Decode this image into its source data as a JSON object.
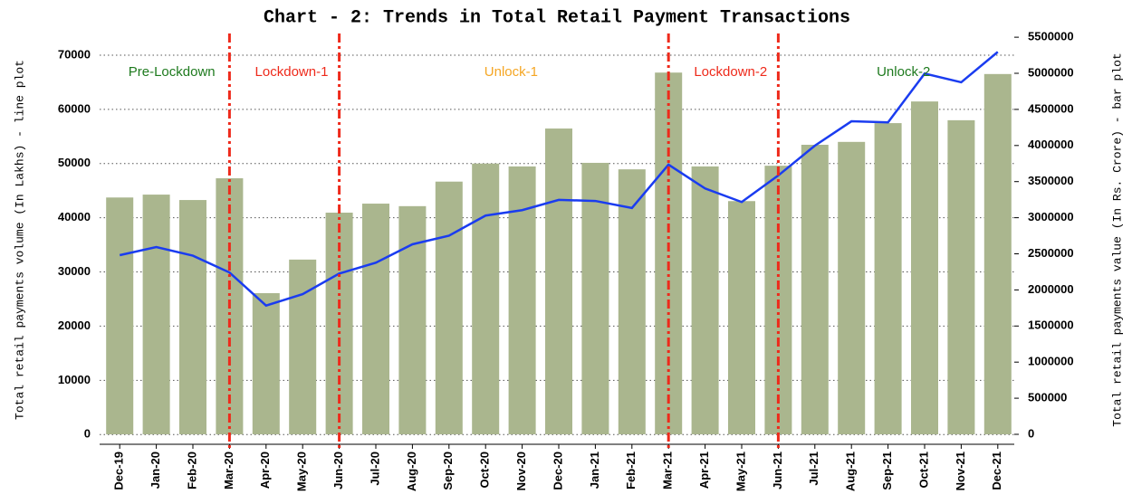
{
  "chart_data": {
    "type": "bar_line",
    "title": "Chart - 2: Trends in Total Retail Payment Transactions",
    "y_label": "Total retail payments volume (In Lakhs) - line plot",
    "y2_label": "Total retail payments value (In Rs. Crore) - bar plot",
    "categories": [
      "Dec-19",
      "Jan-20",
      "Feb-20",
      "Mar-20",
      "Apr-20",
      "May-20",
      "Jun-20",
      "Jul-20",
      "Aug-20",
      "Sep-20",
      "Oct-20",
      "Nov-20",
      "Dec-20",
      "Jan-21",
      "Feb-21",
      "Mar-21",
      "Apr-21",
      "May-21",
      "Jun-21",
      "Jul-21",
      "Aug-21",
      "Sep-21",
      "Oct-21",
      "Nov-21",
      "Dec-21"
    ],
    "series": [
      {
        "name": "Total retail payments value",
        "type": "bar",
        "axis": "y2",
        "color": "#aab68e",
        "values": [
          3280000,
          3320000,
          3245000,
          3546000,
          1955000,
          2420000,
          3070000,
          3195000,
          3160000,
          3500000,
          3750000,
          3710000,
          4235000,
          3760000,
          3670000,
          5010000,
          3710000,
          3230000,
          3720000,
          4010000,
          4050000,
          4310000,
          4610000,
          4350000,
          4990000
        ]
      },
      {
        "name": "Total retail payments volume",
        "type": "line",
        "axis": "y",
        "color": "#1a3cf0",
        "values": [
          33100,
          34600,
          33000,
          29900,
          23800,
          25900,
          29700,
          31700,
          35100,
          36700,
          40400,
          41400,
          43300,
          43100,
          41800,
          49800,
          45400,
          42900,
          47800,
          53300,
          57800,
          57600,
          66600,
          65000,
          70600
        ]
      }
    ],
    "ylim": [
      -1800,
      73500
    ],
    "yticks": [
      0,
      10000,
      20000,
      30000,
      40000,
      50000,
      60000,
      70000
    ],
    "y2lim": [
      -138000,
      5514000
    ],
    "y2ticks": [
      0,
      500000,
      1000000,
      1500000,
      2000000,
      2500000,
      3000000,
      3500000,
      4000000,
      4500000,
      5000000,
      5500000
    ],
    "grid": true,
    "phase_lines": {
      "categories": [
        "Mar-20",
        "Jun-20",
        "Mar-21",
        "Jun-21"
      ],
      "color": "#ee2a1b"
    },
    "phases": [
      {
        "label": "Pre-Lockdown",
        "color": "#1e7a1e"
      },
      {
        "label": "Lockdown-1",
        "color": "#ee2a1b"
      },
      {
        "label": "Unlock-1",
        "color": "#f5a623"
      },
      {
        "label": "Lockdown-2",
        "color": "#ee2a1b"
      },
      {
        "label": "Unlock-2",
        "color": "#1e7a1e"
      }
    ]
  }
}
